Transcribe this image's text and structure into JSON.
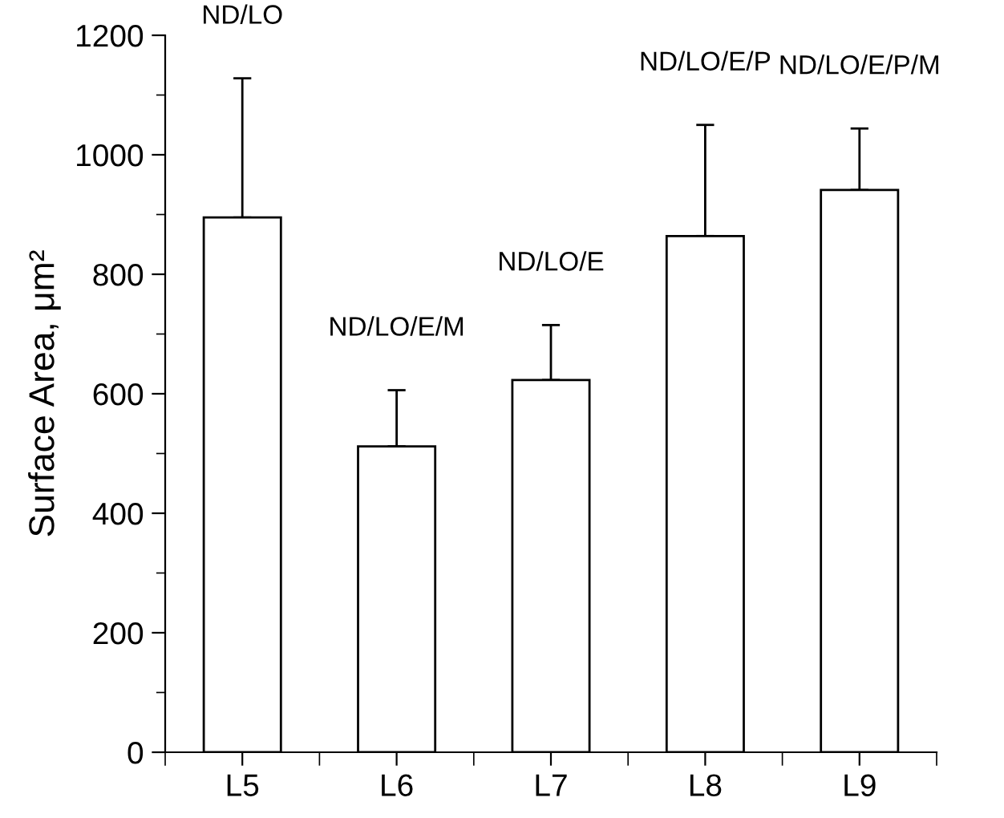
{
  "chart_data": {
    "type": "bar",
    "ylabel": "Surface Area, μm²",
    "categories": [
      "L5",
      "L6",
      "L7",
      "L8",
      "L9"
    ],
    "series": [
      {
        "color": "#ffffff",
        "values": [
          895,
          512,
          623,
          864,
          941
        ],
        "errors": [
          [
            895,
            1128
          ],
          [
            512,
            606
          ],
          [
            623,
            715
          ],
          [
            864,
            1050
          ],
          [
            941,
            1044
          ]
        ]
      }
    ],
    "ylim": [
      0,
      1200
    ],
    "yticks": [
      0,
      200,
      400,
      600,
      800,
      1000,
      1200
    ],
    "grid": false,
    "legend": false,
    "annotations": [
      "ND/LO",
      "ND/LO/E/M",
      "ND/LO/E",
      "ND/LO/E/P",
      "ND/LO/E/P/M"
    ]
  }
}
